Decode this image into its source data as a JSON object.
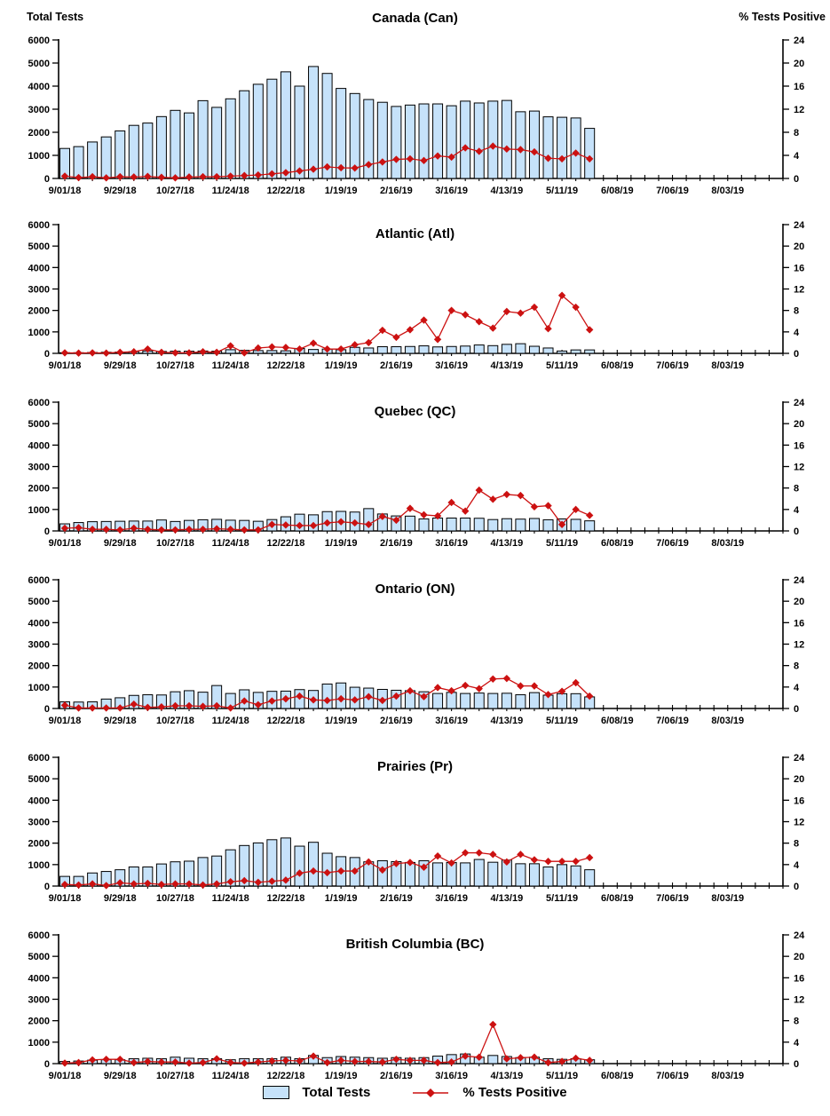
{
  "page": {
    "left_axis_title": "Total Tests",
    "right_axis_title": "% Tests Positive"
  },
  "legend": {
    "total_tests": "Total Tests",
    "pct_positive": "% Tests Positive",
    "position": "bottom"
  },
  "colors": {
    "bar_fill": "#C6E2FA",
    "bar_border": "#000000",
    "line": "#CC1111",
    "axis": "#000000"
  },
  "axes": {
    "left_tick_labels": [
      "0",
      "1000",
      "2000",
      "3000",
      "4000",
      "5000",
      "6000"
    ],
    "right_tick_labels": [
      "0",
      "4",
      "8",
      "12",
      "16",
      "20",
      "24"
    ],
    "x_major_labels": [
      "9/01/18",
      "9/29/18",
      "10/27/18",
      "11/24/18",
      "12/22/18",
      "1/19/19",
      "2/16/19",
      "3/16/19",
      "4/13/19",
      "5/11/19",
      "6/08/19",
      "7/06/19",
      "8/03/19"
    ]
  },
  "chart_data": {
    "type": "combo_bar_line",
    "bar_series_name": "Total Tests",
    "line_series_name": "% Tests Positive",
    "left_ylim": [
      0,
      6000
    ],
    "right_ylim": [
      0,
      24
    ],
    "grid": false,
    "legend_position": "bottom",
    "categories": [
      "9/01/18",
      "9/08/18",
      "9/15/18",
      "9/22/18",
      "9/29/18",
      "10/06/18",
      "10/13/18",
      "10/20/18",
      "10/27/18",
      "11/03/18",
      "11/10/18",
      "11/17/18",
      "11/24/18",
      "12/01/18",
      "12/08/18",
      "12/15/18",
      "12/22/18",
      "12/29/18",
      "1/05/19",
      "1/12/19",
      "1/19/19",
      "1/26/19",
      "2/02/19",
      "2/09/19",
      "2/16/19",
      "2/23/19",
      "3/02/19",
      "3/09/19",
      "3/16/19",
      "3/23/19",
      "3/30/19",
      "4/06/19",
      "4/13/19",
      "4/20/19",
      "4/27/19",
      "5/04/19",
      "5/11/19",
      "5/18/19",
      "5/25/19"
    ],
    "panels": [
      {
        "title": "Canada (Can)",
        "bars": [
          1300,
          1380,
          1580,
          1800,
          2060,
          2300,
          2400,
          2680,
          2950,
          2840,
          3370,
          3080,
          3450,
          3800,
          4080,
          4300,
          4620,
          4000,
          4850,
          4550,
          3900,
          3680,
          3420,
          3300,
          3120,
          3180,
          3230,
          3230,
          3150,
          3350,
          3270,
          3350,
          3380,
          2890,
          2920,
          2670,
          2650,
          2620,
          2170
        ],
        "pct_positive": [
          0.4,
          0.15,
          0.3,
          0.1,
          0.3,
          0.25,
          0.35,
          0.2,
          0.1,
          0.25,
          0.3,
          0.3,
          0.4,
          0.5,
          0.6,
          0.8,
          1.0,
          1.3,
          1.6,
          2.0,
          1.85,
          1.8,
          2.4,
          2.85,
          3.3,
          3.4,
          3.1,
          3.9,
          3.7,
          5.3,
          4.7,
          5.6,
          5.1,
          5.0,
          4.6,
          3.5,
          3.4,
          4.4,
          3.4
        ]
      },
      {
        "title": "Atlantic (Atl)",
        "bars": [
          30,
          30,
          40,
          50,
          60,
          80,
          110,
          90,
          100,
          100,
          110,
          100,
          170,
          140,
          130,
          130,
          120,
          230,
          180,
          200,
          170,
          280,
          250,
          310,
          310,
          320,
          350,
          300,
          320,
          340,
          390,
          360,
          420,
          450,
          330,
          250,
          110,
          160,
          160
        ],
        "pct_positive": [
          0.1,
          0.05,
          0.1,
          0.05,
          0.2,
          0.3,
          0.8,
          0.2,
          0.1,
          0.1,
          0.3,
          0.2,
          1.4,
          0.1,
          1.0,
          1.2,
          1.1,
          0.8,
          1.9,
          0.8,
          0.8,
          1.6,
          2.0,
          4.3,
          3.0,
          4.4,
          6.2,
          2.6,
          8.0,
          7.2,
          5.9,
          4.7,
          7.8,
          7.5,
          8.6,
          4.6,
          10.8,
          8.6,
          4.4
        ]
      },
      {
        "title": "Quebec (QC)",
        "bars": [
          330,
          390,
          430,
          440,
          450,
          460,
          460,
          510,
          440,
          490,
          520,
          540,
          500,
          490,
          450,
          530,
          660,
          780,
          750,
          900,
          910,
          880,
          1040,
          790,
          700,
          690,
          560,
          600,
          600,
          600,
          590,
          530,
          570,
          550,
          580,
          520,
          560,
          540,
          470
        ],
        "pct_positive": [
          0.5,
          0.6,
          0.3,
          0.3,
          0.2,
          0.5,
          0.3,
          0.2,
          0.2,
          0.3,
          0.3,
          0.4,
          0.3,
          0.2,
          0.2,
          1.2,
          1.1,
          1.0,
          1.0,
          1.5,
          1.7,
          1.5,
          1.2,
          2.7,
          2.0,
          4.2,
          3.0,
          2.8,
          5.3,
          3.7,
          7.6,
          5.9,
          6.8,
          6.6,
          4.5,
          4.7,
          1.2,
          4.0,
          2.9
        ]
      },
      {
        "title": "Ontario (ON)",
        "bars": [
          310,
          300,
          310,
          440,
          500,
          610,
          640,
          630,
          780,
          830,
          760,
          1070,
          700,
          870,
          750,
          800,
          810,
          880,
          840,
          1140,
          1190,
          990,
          950,
          890,
          850,
          830,
          780,
          700,
          750,
          700,
          720,
          700,
          710,
          640,
          740,
          620,
          690,
          690,
          540
        ],
        "pct_positive": [
          0.6,
          0.1,
          0.1,
          0.1,
          0.1,
          0.8,
          0.2,
          0.3,
          0.5,
          0.5,
          0.4,
          0.5,
          0.1,
          1.4,
          0.7,
          1.4,
          1.8,
          2.3,
          1.6,
          1.5,
          1.8,
          1.6,
          2.2,
          1.5,
          2.3,
          3.3,
          2.2,
          3.9,
          3.3,
          4.3,
          3.7,
          5.5,
          5.6,
          4.2,
          4.2,
          2.6,
          3.2,
          4.8,
          2.3
        ]
      },
      {
        "title": "Prairies (Pr)",
        "bars": [
          450,
          450,
          610,
          680,
          760,
          890,
          890,
          1030,
          1130,
          1160,
          1330,
          1400,
          1690,
          1890,
          2010,
          2160,
          2240,
          1860,
          2040,
          1530,
          1370,
          1330,
          1130,
          1180,
          1140,
          1100,
          1180,
          1080,
          1100,
          1080,
          1240,
          1110,
          1210,
          1040,
          1040,
          890,
          1000,
          940,
          760
        ],
        "pct_positive": [
          0.3,
          0.2,
          0.4,
          0.1,
          0.6,
          0.4,
          0.5,
          0.3,
          0.4,
          0.4,
          0.2,
          0.4,
          0.8,
          1.0,
          0.7,
          0.9,
          1.1,
          2.4,
          2.8,
          2.5,
          2.8,
          2.8,
          4.5,
          3.0,
          4.2,
          4.4,
          3.5,
          5.6,
          4.3,
          6.2,
          6.2,
          5.9,
          4.5,
          5.9,
          4.9,
          4.6,
          4.6,
          4.6,
          5.3
        ]
      },
      {
        "title": "British Columbia (BC)",
        "bars": [
          100,
          120,
          160,
          180,
          180,
          230,
          250,
          230,
          300,
          250,
          230,
          230,
          180,
          230,
          230,
          230,
          300,
          230,
          380,
          280,
          330,
          300,
          280,
          250,
          280,
          250,
          280,
          350,
          420,
          450,
          300,
          380,
          330,
          280,
          300,
          230,
          200,
          230,
          180
        ],
        "pct_positive": [
          0.1,
          0.2,
          0.7,
          0.8,
          0.8,
          0.2,
          0.4,
          0.3,
          0.3,
          0.1,
          0.2,
          0.9,
          0.2,
          0.1,
          0.3,
          0.5,
          0.6,
          0.5,
          1.4,
          0.2,
          0.6,
          0.4,
          0.4,
          0.3,
          0.8,
          0.6,
          0.6,
          0.2,
          0.3,
          1.4,
          1.2,
          7.3,
          0.9,
          1.1,
          1.2,
          0.2,
          0.4,
          1.0,
          0.6
        ]
      }
    ]
  }
}
